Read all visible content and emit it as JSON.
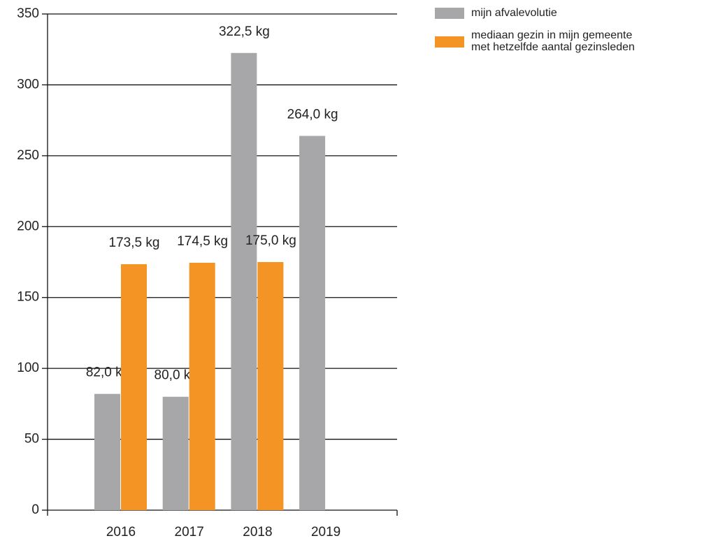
{
  "chart_data": {
    "type": "bar",
    "categories": [
      "2016",
      "2017",
      "2018",
      "2019"
    ],
    "series": [
      {
        "name": "mijn afvalevolutie",
        "color": "#a7a7a9",
        "values": [
          82,
          80,
          322.5,
          264
        ],
        "value_labels": [
          "82,0 kg",
          "80,0 kg",
          "322,5 kg",
          "264,0 kg"
        ]
      },
      {
        "name": "mediaan gezin in mijn gemeente met hetzelfde aantal gezinsleden",
        "color": "#f39424",
        "values": [
          173.5,
          174.5,
          175,
          null
        ],
        "value_labels": [
          "173,5 kg",
          "174,5 kg",
          "175,0 kg",
          null
        ]
      }
    ],
    "ylim": [
      0,
      350
    ],
    "yticks": [
      0,
      50,
      100,
      150,
      200,
      250,
      300,
      350
    ],
    "grid": true,
    "legend": "top-right"
  }
}
